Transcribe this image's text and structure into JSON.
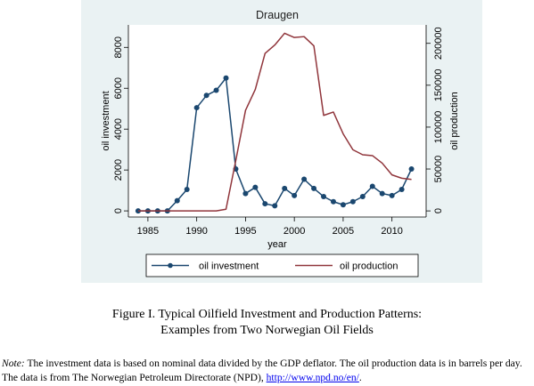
{
  "chart_data": {
    "type": "line",
    "title": "Draugen",
    "xlabel": "year",
    "ylabel_left": "oil investment",
    "ylabel_right": "oil production",
    "xlim": [
      1983,
      2013.5
    ],
    "ylim_left": [
      -300,
      9100
    ],
    "ylim_right": [
      -7300,
      222000
    ],
    "x_ticks": [
      1985,
      1990,
      1995,
      2000,
      2005,
      2010
    ],
    "y_ticks_left": [
      0,
      2000,
      4000,
      6000,
      8000
    ],
    "y_ticks_right": [
      0,
      50000,
      100000,
      150000,
      200000
    ],
    "legend": "bottom",
    "colors": {
      "background": "#eaf2f3",
      "plot": "#ffffff",
      "investment": "#1a476f",
      "production": "#90353b"
    },
    "series": [
      {
        "name": "oil investment",
        "axis": "left",
        "marker": "circle",
        "x": [
          1984,
          1985,
          1986,
          1987,
          1988,
          1989,
          1990,
          1991,
          1992,
          1993,
          1994,
          1995,
          1996,
          1997,
          1998,
          1999,
          2000,
          2001,
          2002,
          2003,
          2004,
          2005,
          2006,
          2007,
          2008,
          2009,
          2010,
          2011,
          2012
        ],
        "values": [
          0,
          0,
          0,
          0,
          500,
          1050,
          5050,
          5650,
          5900,
          6500,
          2050,
          850,
          1150,
          350,
          250,
          1100,
          750,
          1550,
          1100,
          700,
          450,
          300,
          450,
          700,
          1200,
          850,
          750,
          1050,
          2050
        ]
      },
      {
        "name": "oil production",
        "axis": "right",
        "marker": "none",
        "x": [
          1984,
          1985,
          1986,
          1987,
          1988,
          1989,
          1990,
          1991,
          1992,
          1993,
          1994,
          1995,
          1996,
          1997,
          1998,
          1999,
          2000,
          2001,
          2002,
          2003,
          2004,
          2005,
          2006,
          2007,
          2008,
          2009,
          2010,
          2011,
          2012
        ],
        "values": [
          0,
          0,
          0,
          0,
          0,
          0,
          0,
          0,
          0,
          2000,
          60000,
          120000,
          145000,
          188000,
          198000,
          212000,
          207000,
          208000,
          197000,
          114000,
          118000,
          92000,
          73000,
          67000,
          66000,
          57000,
          43000,
          39000,
          37500
        ]
      }
    ]
  },
  "caption": {
    "line1": "Figure I.  Typical Oilfield Investment and Production Patterns:",
    "line2": "Examples from Two Norwegian Oil Fields"
  },
  "note": {
    "label": "Note:",
    "text": " The investment data is based on nominal data divided by the GDP deflator.  The oil production data is in barrels per day.  The data is from The Norwegian Petroleum Directorate (NPD), ",
    "link": "http://www.npd.no/en/",
    "end": "."
  }
}
